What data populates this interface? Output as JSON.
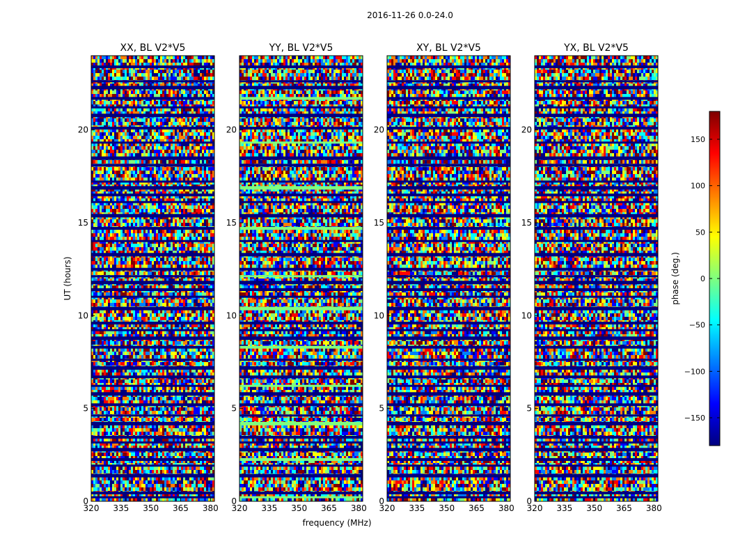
{
  "figure": {
    "suptitle": "2016-11-26 0.0-24.0",
    "xlabel": "frequency (MHz)",
    "ylabel": "UT (hours)"
  },
  "colors": {
    "jet": [
      "#00007f",
      "#0000ff",
      "#007fff",
      "#00ffff",
      "#7fff7f",
      "#ffff00",
      "#ff7f00",
      "#ff0000",
      "#7f0000"
    ]
  },
  "chart_data": {
    "type": "heatmap",
    "panels": [
      {
        "title": "XX, BL V2*V5"
      },
      {
        "title": "YY, BL V2*V5"
      },
      {
        "title": "XY, BL V2*V5"
      },
      {
        "title": "YX, BL V2*V5"
      }
    ],
    "x": {
      "range": [
        320,
        382
      ],
      "ticks": [
        320,
        335,
        350,
        365,
        380
      ],
      "tick_labels": [
        "320",
        "335",
        "350",
        "365",
        "380"
      ]
    },
    "y": {
      "range": [
        0,
        24
      ],
      "ticks": [
        0,
        5,
        10,
        15,
        20
      ],
      "tick_labels": [
        "0",
        "5",
        "10",
        "15",
        "20"
      ]
    },
    "colorbar": {
      "label": "phase (deg.)",
      "range": [
        -180,
        180
      ],
      "ticks": [
        150,
        100,
        50,
        0,
        -50,
        -100,
        -150
      ],
      "tick_labels": [
        "150",
        "100",
        "50",
        "0",
        "−50",
        "−100",
        "−150"
      ]
    },
    "flag_rows_hours": [
      0.2,
      0.45,
      1.4,
      1.9,
      2.25,
      2.8,
      3.15,
      3.45,
      4.2,
      4.6,
      5.2,
      5.8,
      6.2,
      6.7,
      7.2,
      7.6,
      8.3,
      8.8,
      9.2,
      9.6,
      10.4,
      11.0,
      11.4,
      11.8,
      12.1,
      12.5,
      13.3,
      14.0,
      14.7,
      15.4,
      16.1,
      16.5,
      16.9,
      17.2,
      18.1,
      18.5,
      19.3,
      20.1,
      20.8,
      21.2,
      21.7,
      22.3,
      22.6,
      23.4
    ]
  }
}
